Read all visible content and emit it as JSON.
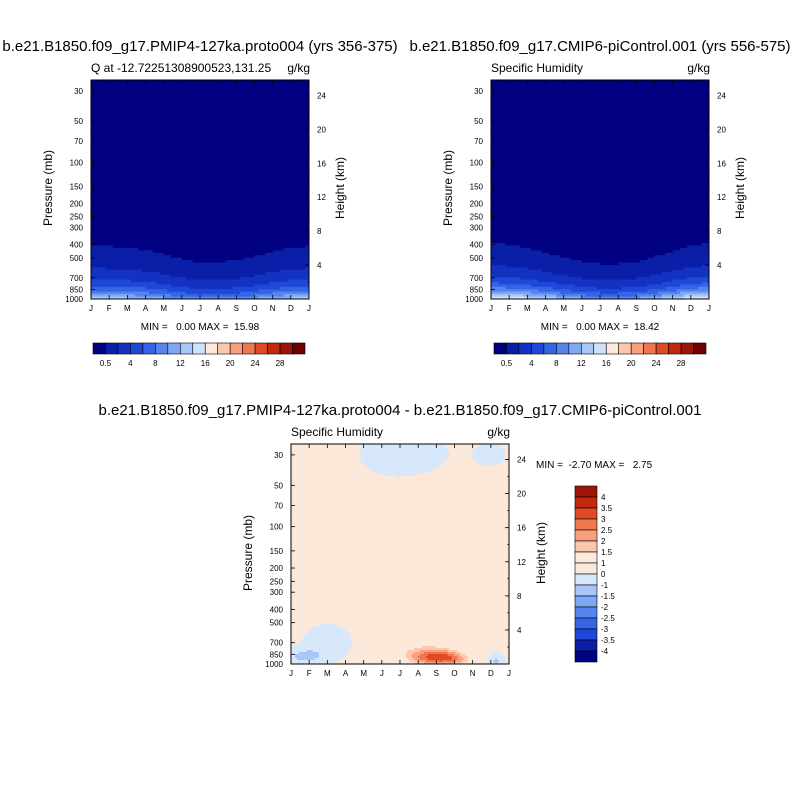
{
  "chart_data": [
    {
      "type": "heatmap",
      "title": "b.e21.B1850.f09_g17.PMIP4-127ka.proto004 (yrs 356-375)",
      "left_label": "Q at -12.72251308900523,131.25",
      "right_label": "g/kg",
      "ylabel": "Pressure (mb)",
      "ylabel_right": "Height (km)",
      "x_tick_labels": [
        "J",
        "F",
        "M",
        "A",
        "M",
        "J",
        "J",
        "A",
        "S",
        "O",
        "N",
        "D",
        "J"
      ],
      "y_tick_labels": [
        "30",
        "50",
        "70",
        "100",
        "150",
        "200",
        "250",
        "300",
        "400",
        "500",
        "700",
        "850",
        "1000"
      ],
      "y_right_tick_labels": [
        "24",
        "20",
        "16",
        "12",
        "8",
        "4"
      ],
      "ylim": [
        1000,
        25
      ],
      "stats_text": "MIN =   0.00 MAX =  15.98",
      "min": 0.0,
      "max": 15.98,
      "surface_profile": [
        13.5,
        13.3,
        13.0,
        12.2,
        11.0,
        9.5,
        8.8,
        9.0,
        9.3,
        10.5,
        12.0,
        13.0,
        13.5
      ],
      "scale_height_km": [
        4.5,
        4.5,
        4.4,
        4.3,
        4.1,
        3.8,
        3.6,
        3.6,
        3.7,
        3.9,
        4.2,
        4.4,
        4.5
      ]
    },
    {
      "type": "heatmap",
      "title": "b.e21.B1850.f09_g17.CMIP6-piControl.001 (yrs 556-575)",
      "left_label": "Specific Humidity",
      "right_label": "g/kg",
      "ylabel": "Pressure (mb)",
      "ylabel_right": "Height (km)",
      "x_tick_labels": [
        "J",
        "F",
        "M",
        "A",
        "M",
        "J",
        "J",
        "A",
        "S",
        "O",
        "N",
        "D",
        "J"
      ],
      "y_tick_labels": [
        "30",
        "50",
        "70",
        "100",
        "150",
        "200",
        "250",
        "300",
        "400",
        "500",
        "700",
        "850",
        "1000"
      ],
      "y_right_tick_labels": [
        "24",
        "20",
        "16",
        "12",
        "8",
        "4"
      ],
      "ylim": [
        1000,
        25
      ],
      "stats_text": "MIN =   0.00 MAX =  18.42",
      "min": 0.0,
      "max": 18.42,
      "surface_profile": [
        16.5,
        16.0,
        15.2,
        14.0,
        12.6,
        11.0,
        10.0,
        10.0,
        10.8,
        12.2,
        14.2,
        16.0,
        16.5
      ],
      "scale_height_km": [
        4.5,
        4.4,
        4.2,
        3.9,
        3.6,
        3.4,
        3.3,
        3.3,
        3.4,
        3.7,
        4.0,
        4.3,
        4.5
      ]
    },
    {
      "type": "heatmap",
      "title": "b.e21.B1850.f09_g17.PMIP4-127ka.proto004 - b.e21.B1850.f09_g17.CMIP6-piControl.001",
      "left_label": "Specific Humidity",
      "right_label": "g/kg",
      "ylabel": "Pressure (mb)",
      "ylabel_right": "Height (km)",
      "x_tick_labels": [
        "J",
        "F",
        "M",
        "A",
        "M",
        "J",
        "J",
        "A",
        "S",
        "O",
        "N",
        "D",
        "J"
      ],
      "y_tick_labels": [
        "30",
        "50",
        "70",
        "100",
        "150",
        "200",
        "250",
        "300",
        "400",
        "500",
        "700",
        "850",
        "1000"
      ],
      "y_right_tick_labels": [
        "24",
        "20",
        "16",
        "12",
        "8",
        "4"
      ],
      "ylim": [
        1000,
        25
      ],
      "stats_text": "MIN =  -2.70 MAX =   2.75",
      "min": -2.7,
      "max": 2.75
    }
  ],
  "colorbars": {
    "absolute": {
      "labels": [
        "0.5",
        "4",
        "8",
        "12",
        "16",
        "20",
        "24",
        "28"
      ],
      "colors": [
        "#000080",
        "#0a1fa8",
        "#1432c2",
        "#1f48d8",
        "#3365e6",
        "#5685ee",
        "#7ea7f4",
        "#a9c6f8",
        "#cfe2fb",
        "#fde9dc",
        "#fbc8ad",
        "#f7a07b",
        "#f0764e",
        "#e04b25",
        "#c22a10",
        "#9b1606",
        "#700000"
      ]
    },
    "difference": {
      "labels": [
        "4",
        "3.5",
        "3",
        "2.5",
        "2",
        "1.5",
        "1",
        "0",
        "-1",
        "-1.5",
        "-2",
        "-2.5",
        "-3",
        "-3.5",
        "-4"
      ],
      "colors": [
        "#9b1606",
        "#c22a10",
        "#e04b25",
        "#f0764e",
        "#f7a07b",
        "#fbc8ad",
        "#fde9dc",
        "#fbe8d8",
        "#d7e8fb",
        "#a9c6f8",
        "#7ea7f4",
        "#5685ee",
        "#3365e6",
        "#1f48d8",
        "#0a1fa8",
        "#000080"
      ]
    }
  }
}
